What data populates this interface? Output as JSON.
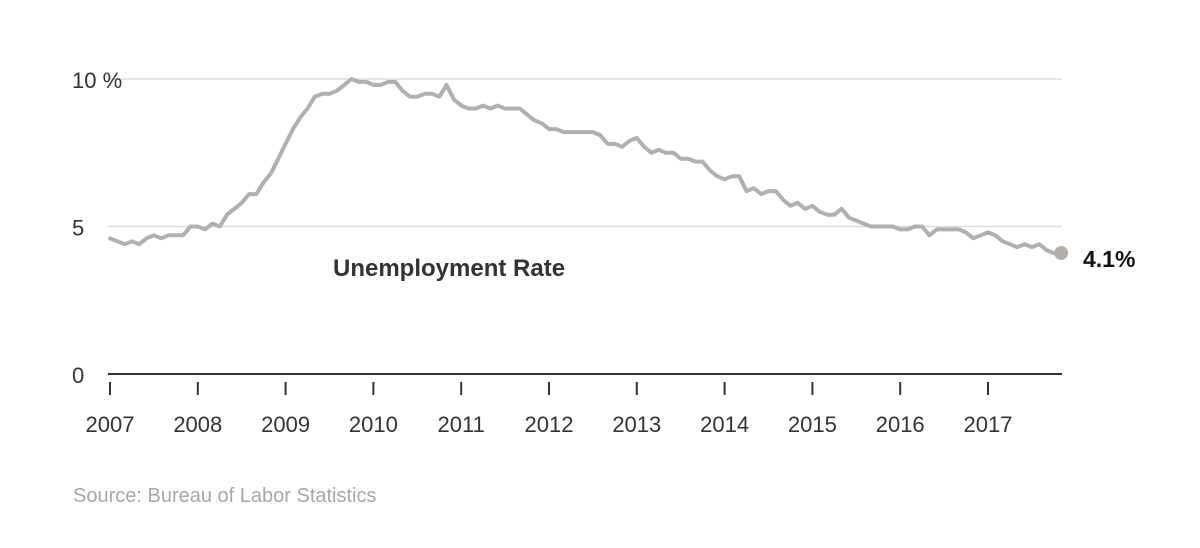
{
  "chart_data": {
    "type": "line",
    "title": "",
    "xlabel": "",
    "ylabel": "",
    "ylim": [
      0,
      10
    ],
    "xlim": [
      2007,
      2017.833
    ],
    "grid": true,
    "y_ticks": [
      {
        "value": 0,
        "label": "0"
      },
      {
        "value": 5,
        "label": "5"
      },
      {
        "value": 10,
        "label": "10 %"
      }
    ],
    "x_ticks": [
      {
        "value": 2007,
        "label": "2007"
      },
      {
        "value": 2008,
        "label": "2008"
      },
      {
        "value": 2009,
        "label": "2009"
      },
      {
        "value": 2010,
        "label": "2010"
      },
      {
        "value": 2011,
        "label": "2011"
      },
      {
        "value": 2012,
        "label": "2012"
      },
      {
        "value": 2013,
        "label": "2013"
      },
      {
        "value": 2014,
        "label": "2014"
      },
      {
        "value": 2015,
        "label": "2015"
      },
      {
        "value": 2016,
        "label": "2016"
      },
      {
        "value": 2017,
        "label": "2017"
      }
    ],
    "series": [
      {
        "name": "Unemployment Rate",
        "color": "#b3afad",
        "x": [
          2007.0,
          2007.083,
          2007.167,
          2007.25,
          2007.333,
          2007.417,
          2007.5,
          2007.583,
          2007.667,
          2007.75,
          2007.833,
          2007.917,
          2008.0,
          2008.083,
          2008.167,
          2008.25,
          2008.333,
          2008.417,
          2008.5,
          2008.583,
          2008.667,
          2008.75,
          2008.833,
          2008.917,
          2009.0,
          2009.083,
          2009.167,
          2009.25,
          2009.333,
          2009.417,
          2009.5,
          2009.583,
          2009.667,
          2009.75,
          2009.833,
          2009.917,
          2010.0,
          2010.083,
          2010.167,
          2010.25,
          2010.333,
          2010.417,
          2010.5,
          2010.583,
          2010.667,
          2010.75,
          2010.833,
          2010.917,
          2011.0,
          2011.083,
          2011.167,
          2011.25,
          2011.333,
          2011.417,
          2011.5,
          2011.583,
          2011.667,
          2011.75,
          2011.833,
          2011.917,
          2012.0,
          2012.083,
          2012.167,
          2012.25,
          2012.333,
          2012.417,
          2012.5,
          2012.583,
          2012.667,
          2012.75,
          2012.833,
          2012.917,
          2013.0,
          2013.083,
          2013.167,
          2013.25,
          2013.333,
          2013.417,
          2013.5,
          2013.583,
          2013.667,
          2013.75,
          2013.833,
          2013.917,
          2014.0,
          2014.083,
          2014.167,
          2014.25,
          2014.333,
          2014.417,
          2014.5,
          2014.583,
          2014.667,
          2014.75,
          2014.833,
          2014.917,
          2015.0,
          2015.083,
          2015.167,
          2015.25,
          2015.333,
          2015.417,
          2015.5,
          2015.583,
          2015.667,
          2015.75,
          2015.833,
          2015.917,
          2016.0,
          2016.083,
          2016.167,
          2016.25,
          2016.333,
          2016.417,
          2016.5,
          2016.583,
          2016.667,
          2016.75,
          2016.833,
          2016.917,
          2017.0,
          2017.083,
          2017.167,
          2017.25,
          2017.333,
          2017.417,
          2017.5,
          2017.583,
          2017.667,
          2017.75,
          2017.833
        ],
        "values": [
          4.6,
          4.5,
          4.4,
          4.5,
          4.4,
          4.6,
          4.7,
          4.6,
          4.7,
          4.7,
          4.7,
          5.0,
          5.0,
          4.9,
          5.1,
          5.0,
          5.4,
          5.6,
          5.8,
          6.1,
          6.1,
          6.5,
          6.8,
          7.3,
          7.8,
          8.3,
          8.7,
          9.0,
          9.4,
          9.5,
          9.5,
          9.6,
          9.8,
          10.0,
          9.9,
          9.9,
          9.8,
          9.8,
          9.9,
          9.9,
          9.6,
          9.4,
          9.4,
          9.5,
          9.5,
          9.4,
          9.8,
          9.3,
          9.1,
          9.0,
          9.0,
          9.1,
          9.0,
          9.1,
          9.0,
          9.0,
          9.0,
          8.8,
          8.6,
          8.5,
          8.3,
          8.3,
          8.2,
          8.2,
          8.2,
          8.2,
          8.2,
          8.1,
          7.8,
          7.8,
          7.7,
          7.9,
          8.0,
          7.7,
          7.5,
          7.6,
          7.5,
          7.5,
          7.3,
          7.3,
          7.2,
          7.2,
          6.9,
          6.7,
          6.6,
          6.7,
          6.7,
          6.2,
          6.3,
          6.1,
          6.2,
          6.2,
          5.9,
          5.7,
          5.8,
          5.6,
          5.7,
          5.5,
          5.4,
          5.4,
          5.6,
          5.3,
          5.2,
          5.1,
          5.0,
          5.0,
          5.0,
          5.0,
          4.9,
          4.9,
          5.0,
          5.0,
          4.7,
          4.9,
          4.9,
          4.9,
          4.9,
          4.8,
          4.6,
          4.7,
          4.8,
          4.7,
          4.5,
          4.4,
          4.3,
          4.4,
          4.3,
          4.4,
          4.2,
          4.1,
          4.1
        ]
      }
    ],
    "annotations": {
      "series_label": "Unemployment Rate",
      "end_value_label": "4.1%"
    }
  },
  "source": "Source: Bureau of Labor Statistics"
}
